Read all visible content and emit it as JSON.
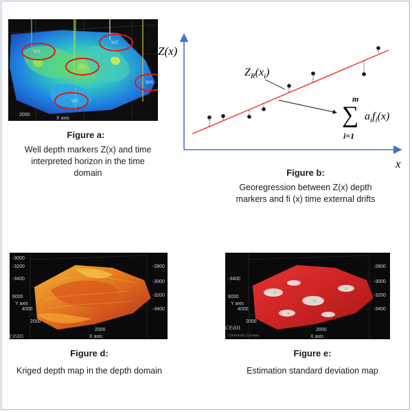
{
  "figure_a": {
    "title": "Figure a:",
    "caption": "Well depth markers Z(x) and time interpreted horizon in the time domain",
    "well_labels": [
      "W1",
      "W2",
      "W3",
      "W4",
      "W5"
    ],
    "axis_tick": "2000",
    "axis_label": "X axis"
  },
  "figure_b": {
    "title": "Figure b:",
    "caption": "Georegression between Z(x) depth markers and fi (x) time external drifts",
    "y_axis_label": "Z(x)",
    "x_axis_label": "x",
    "point_label": "Z_R(x_i)",
    "sum_label": "∑ a_i f_i(x)",
    "sum_upper": "m",
    "sum_lower": "i=1",
    "line_color": "#e8302a"
  },
  "figure_d": {
    "title": "Figure d:",
    "caption": "Kriged depth map in the depth domain",
    "ticks_left": [
      "-3000",
      "-3200",
      "-3400",
      "6000",
      "4000",
      "2000"
    ],
    "ticks_right": [
      "-2800",
      "-3000",
      "-3200",
      "-3400"
    ],
    "axis_y": "Y axis",
    "axis_x": "X axis",
    "x_tick": "2000",
    "watermark": "cean"
  },
  "figure_e": {
    "title": "Figure e:",
    "caption": "Estimation standard deviation map",
    "ticks_left": [
      "-3400",
      "6000",
      "4000",
      "2000"
    ],
    "ticks_right": [
      "-2800",
      "-3000",
      "-3200",
      "-3400"
    ],
    "axis_y": "Y axis",
    "axis_x": "X axis",
    "x_tick": "2000",
    "watermark": "cean",
    "watermark_sub": "University License"
  }
}
